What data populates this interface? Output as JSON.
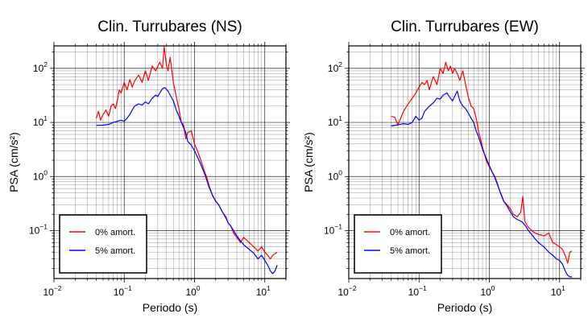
{
  "chart_data": [
    {
      "type": "line",
      "title": "Clin. Turrubares (NS)",
      "xlabel": "Periodo (s)",
      "ylabel": "PSA (cm/s²)",
      "xscale": "log",
      "yscale": "log",
      "xlim": [
        0.01,
        20
      ],
      "ylim": [
        0.013,
        260
      ],
      "grid": true,
      "legend_position": "bottom-left",
      "x_ticks": [
        {
          "value": 0.01,
          "base": "10",
          "exp": "−2"
        },
        {
          "value": 0.1,
          "base": "10",
          "exp": "−1"
        },
        {
          "value": 1,
          "base": "10",
          "exp": "0"
        },
        {
          "value": 10,
          "base": "10",
          "exp": "1"
        }
      ],
      "y_ticks": [
        {
          "value": 0.1,
          "base": "10",
          "exp": "−1"
        },
        {
          "value": 1,
          "base": "10",
          "exp": "0"
        },
        {
          "value": 10,
          "base": "10",
          "exp": "1"
        },
        {
          "value": 100,
          "base": "10",
          "exp": "2"
        }
      ],
      "series": [
        {
          "name": "0% amort.",
          "color": "#ff0000",
          "points": [
            [
              0.04,
              12
            ],
            [
              0.043,
              16
            ],
            [
              0.046,
              11
            ],
            [
              0.05,
              14
            ],
            [
              0.055,
              17
            ],
            [
              0.06,
              13
            ],
            [
              0.065,
              20
            ],
            [
              0.07,
              22
            ],
            [
              0.075,
              18
            ],
            [
              0.08,
              26
            ],
            [
              0.085,
              40
            ],
            [
              0.09,
              35
            ],
            [
              0.1,
              55
            ],
            [
              0.11,
              40
            ],
            [
              0.12,
              62
            ],
            [
              0.13,
              45
            ],
            [
              0.14,
              58
            ],
            [
              0.16,
              75
            ],
            [
              0.18,
              55
            ],
            [
              0.2,
              90
            ],
            [
              0.22,
              60
            ],
            [
              0.25,
              110
            ],
            [
              0.28,
              90
            ],
            [
              0.32,
              130
            ],
            [
              0.35,
              100
            ],
            [
              0.37,
              250
            ],
            [
              0.4,
              110
            ],
            [
              0.42,
              90
            ],
            [
              0.45,
              160
            ],
            [
              0.5,
              55
            ],
            [
              0.55,
              30
            ],
            [
              0.6,
              18
            ],
            [
              0.65,
              10
            ],
            [
              0.7,
              9
            ],
            [
              0.75,
              5
            ],
            [
              0.8,
              6.5
            ],
            [
              0.9,
              7
            ],
            [
              1.0,
              4
            ],
            [
              1.1,
              3
            ],
            [
              1.2,
              2.2
            ],
            [
              1.3,
              1.6
            ],
            [
              1.4,
              1.2
            ],
            [
              1.5,
              0.95
            ],
            [
              1.6,
              0.7
            ],
            [
              1.8,
              0.45
            ],
            [
              2.0,
              0.35
            ],
            [
              2.2,
              0.3
            ],
            [
              2.5,
              0.22
            ],
            [
              2.8,
              0.18
            ],
            [
              3.0,
              0.14
            ],
            [
              3.3,
              0.12
            ],
            [
              3.6,
              0.09
            ],
            [
              4.0,
              0.075
            ],
            [
              4.5,
              0.06
            ],
            [
              5.0,
              0.075
            ],
            [
              6.0,
              0.06
            ],
            [
              7.0,
              0.05
            ],
            [
              8.0,
              0.042
            ],
            [
              9.0,
              0.05
            ],
            [
              10.0,
              0.04
            ],
            [
              11.0,
              0.035
            ],
            [
              12.0,
              0.03
            ],
            [
              13.0,
              0.035
            ],
            [
              15.0,
              0.04
            ]
          ]
        },
        {
          "name": "5% amort.",
          "color": "#0000ff",
          "points": [
            [
              0.04,
              8.8
            ],
            [
              0.05,
              8.9
            ],
            [
              0.06,
              9.2
            ],
            [
              0.07,
              10
            ],
            [
              0.08,
              10.5
            ],
            [
              0.09,
              11
            ],
            [
              0.1,
              10.5
            ],
            [
              0.11,
              12
            ],
            [
              0.12,
              14
            ],
            [
              0.13,
              17
            ],
            [
              0.14,
              20
            ],
            [
              0.16,
              22
            ],
            [
              0.18,
              21
            ],
            [
              0.2,
              24
            ],
            [
              0.22,
              22
            ],
            [
              0.25,
              28
            ],
            [
              0.28,
              32
            ],
            [
              0.3,
              30
            ],
            [
              0.32,
              35
            ],
            [
              0.35,
              42
            ],
            [
              0.38,
              44
            ],
            [
              0.42,
              38
            ],
            [
              0.45,
              32
            ],
            [
              0.5,
              25
            ],
            [
              0.55,
              17
            ],
            [
              0.6,
              13
            ],
            [
              0.65,
              10
            ],
            [
              0.7,
              8
            ],
            [
              0.75,
              6.5
            ],
            [
              0.8,
              4.5
            ],
            [
              0.9,
              3.8
            ],
            [
              1.0,
              3.0
            ],
            [
              1.1,
              2.3
            ],
            [
              1.2,
              1.8
            ],
            [
              1.3,
              1.4
            ],
            [
              1.4,
              1.1
            ],
            [
              1.5,
              0.85
            ],
            [
              1.6,
              0.65
            ],
            [
              1.8,
              0.45
            ],
            [
              2.0,
              0.35
            ],
            [
              2.2,
              0.3
            ],
            [
              2.5,
              0.22
            ],
            [
              2.8,
              0.17
            ],
            [
              3.0,
              0.14
            ],
            [
              3.3,
              0.12
            ],
            [
              3.6,
              0.1
            ],
            [
              4.0,
              0.08
            ],
            [
              4.5,
              0.065
            ],
            [
              5.0,
              0.055
            ],
            [
              6.0,
              0.045
            ],
            [
              7.0,
              0.038
            ],
            [
              8.0,
              0.03
            ],
            [
              9.0,
              0.035
            ],
            [
              10.0,
              0.028
            ],
            [
              11.0,
              0.023
            ],
            [
              12.0,
              0.018
            ],
            [
              13.0,
              0.016
            ],
            [
              14.0,
              0.018
            ],
            [
              15.0,
              0.023
            ]
          ]
        }
      ]
    },
    {
      "type": "line",
      "title": "Clin. Turrubares (EW)",
      "xlabel": "Periodo (s)",
      "ylabel": "PSA (cm/s²)",
      "xscale": "log",
      "yscale": "log",
      "xlim": [
        0.01,
        20
      ],
      "ylim": [
        0.013,
        260
      ],
      "grid": true,
      "legend_position": "bottom-left",
      "x_ticks": [
        {
          "value": 0.01,
          "base": "10",
          "exp": "−2"
        },
        {
          "value": 0.1,
          "base": "10",
          "exp": "−1"
        },
        {
          "value": 1,
          "base": "10",
          "exp": "0"
        },
        {
          "value": 10,
          "base": "10",
          "exp": "1"
        }
      ],
      "y_ticks": [
        {
          "value": 0.1,
          "base": "10",
          "exp": "−1"
        },
        {
          "value": 1,
          "base": "10",
          "exp": "0"
        },
        {
          "value": 10,
          "base": "10",
          "exp": "1"
        },
        {
          "value": 100,
          "base": "10",
          "exp": "2"
        }
      ],
      "series": [
        {
          "name": "0% amort.",
          "color": "#ff0000",
          "points": [
            [
              0.04,
              13
            ],
            [
              0.045,
              12.5
            ],
            [
              0.05,
              9
            ],
            [
              0.055,
              12
            ],
            [
              0.06,
              16
            ],
            [
              0.07,
              22
            ],
            [
              0.08,
              28
            ],
            [
              0.09,
              35
            ],
            [
              0.1,
              45
            ],
            [
              0.11,
              55
            ],
            [
              0.12,
              50
            ],
            [
              0.13,
              60
            ],
            [
              0.14,
              40
            ],
            [
              0.15,
              55
            ],
            [
              0.16,
              70
            ],
            [
              0.18,
              50
            ],
            [
              0.2,
              100
            ],
            [
              0.22,
              80
            ],
            [
              0.24,
              130
            ],
            [
              0.26,
              90
            ],
            [
              0.28,
              110
            ],
            [
              0.3,
              80
            ],
            [
              0.32,
              100
            ],
            [
              0.35,
              80
            ],
            [
              0.38,
              60
            ],
            [
              0.42,
              90
            ],
            [
              0.46,
              50
            ],
            [
              0.5,
              30
            ],
            [
              0.55,
              20
            ],
            [
              0.6,
              18
            ],
            [
              0.65,
              12
            ],
            [
              0.7,
              7
            ],
            [
              0.75,
              5
            ],
            [
              0.8,
              3.5
            ],
            [
              0.9,
              2.0
            ],
            [
              1.0,
              1.5
            ],
            [
              1.1,
              1.2
            ],
            [
              1.2,
              1.0
            ],
            [
              1.3,
              0.75
            ],
            [
              1.4,
              0.55
            ],
            [
              1.5,
              0.45
            ],
            [
              1.6,
              0.35
            ],
            [
              1.8,
              0.3
            ],
            [
              2.0,
              0.25
            ],
            [
              2.2,
              0.2
            ],
            [
              2.5,
              0.18
            ],
            [
              2.8,
              0.22
            ],
            [
              3.0,
              0.43
            ],
            [
              3.2,
              0.15
            ],
            [
              3.5,
              0.12
            ],
            [
              4.0,
              0.1
            ],
            [
              4.5,
              0.09
            ],
            [
              5.0,
              0.085
            ],
            [
              6.0,
              0.08
            ],
            [
              7.0,
              0.09
            ],
            [
              8.0,
              0.06
            ],
            [
              9.0,
              0.055
            ],
            [
              10.0,
              0.05
            ],
            [
              11.0,
              0.045
            ],
            [
              12.0,
              0.035
            ],
            [
              13.0,
              0.025
            ],
            [
              14.0,
              0.04
            ],
            [
              15.0,
              0.042
            ]
          ]
        },
        {
          "name": "5% amort.",
          "color": "#0000ff",
          "points": [
            [
              0.04,
              8.6
            ],
            [
              0.05,
              9.0
            ],
            [
              0.06,
              9.5
            ],
            [
              0.07,
              9.2
            ],
            [
              0.08,
              10
            ],
            [
              0.09,
              13
            ],
            [
              0.1,
              11
            ],
            [
              0.11,
              12
            ],
            [
              0.12,
              16
            ],
            [
              0.13,
              18
            ],
            [
              0.14,
              20
            ],
            [
              0.16,
              23
            ],
            [
              0.18,
              28
            ],
            [
              0.2,
              27
            ],
            [
              0.22,
              32
            ],
            [
              0.25,
              35
            ],
            [
              0.28,
              28
            ],
            [
              0.3,
              25
            ],
            [
              0.32,
              30
            ],
            [
              0.35,
              38
            ],
            [
              0.38,
              25
            ],
            [
              0.42,
              20
            ],
            [
              0.46,
              18
            ],
            [
              0.5,
              15
            ],
            [
              0.55,
              12
            ],
            [
              0.6,
              10
            ],
            [
              0.65,
              7
            ],
            [
              0.7,
              5.5
            ],
            [
              0.75,
              4.2
            ],
            [
              0.8,
              3.2
            ],
            [
              0.9,
              2.2
            ],
            [
              1.0,
              1.6
            ],
            [
              1.1,
              1.2
            ],
            [
              1.2,
              0.95
            ],
            [
              1.3,
              0.72
            ],
            [
              1.4,
              0.55
            ],
            [
              1.5,
              0.43
            ],
            [
              1.6,
              0.35
            ],
            [
              1.8,
              0.28
            ],
            [
              2.0,
              0.22
            ],
            [
              2.2,
              0.18
            ],
            [
              2.5,
              0.16
            ],
            [
              2.8,
              0.15
            ],
            [
              3.0,
              0.14
            ],
            [
              3.3,
              0.12
            ],
            [
              3.6,
              0.1
            ],
            [
              4.0,
              0.085
            ],
            [
              4.5,
              0.07
            ],
            [
              5.0,
              0.06
            ],
            [
              6.0,
              0.05
            ],
            [
              7.0,
              0.04
            ],
            [
              8.0,
              0.035
            ],
            [
              9.0,
              0.03
            ],
            [
              10.0,
              0.028
            ],
            [
              11.0,
              0.024
            ],
            [
              12.0,
              0.018
            ],
            [
              13.0,
              0.015
            ],
            [
              14.0,
              0.014
            ],
            [
              15.0,
              0.014
            ]
          ]
        }
      ]
    }
  ]
}
